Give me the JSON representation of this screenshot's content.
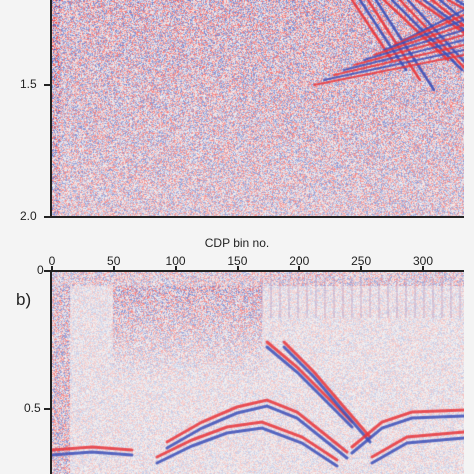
{
  "figure": {
    "panel_b_label": "b)",
    "x_axis_title": "CDP bin no.",
    "colors": {
      "red": "#e8343a",
      "blue": "#3b4fb8",
      "background": "#f4f4f4"
    }
  },
  "chart_data": [
    {
      "type": "heatmap",
      "panel": "a",
      "y_ticks": [
        {
          "value": 1.5,
          "label": "1.5"
        },
        {
          "value": 2.0,
          "label": "2.0"
        }
      ],
      "ylim": [
        1.0,
        2.0
      ]
    },
    {
      "type": "heatmap",
      "panel": "b",
      "xlabel": "CDP bin no.",
      "x_ticks": [
        {
          "value": 0,
          "label": "0"
        },
        {
          "value": 50,
          "label": "50"
        },
        {
          "value": 100,
          "label": "100"
        },
        {
          "value": 150,
          "label": "150"
        },
        {
          "value": 200,
          "label": "200"
        },
        {
          "value": 250,
          "label": "250"
        },
        {
          "value": 300,
          "label": "300"
        }
      ],
      "xlim": [
        0,
        333
      ],
      "y_ticks": [
        {
          "value": 0,
          "label": "0"
        },
        {
          "value": 0.5,
          "label": "0.5"
        }
      ],
      "ylim": [
        0,
        0.75
      ]
    }
  ]
}
